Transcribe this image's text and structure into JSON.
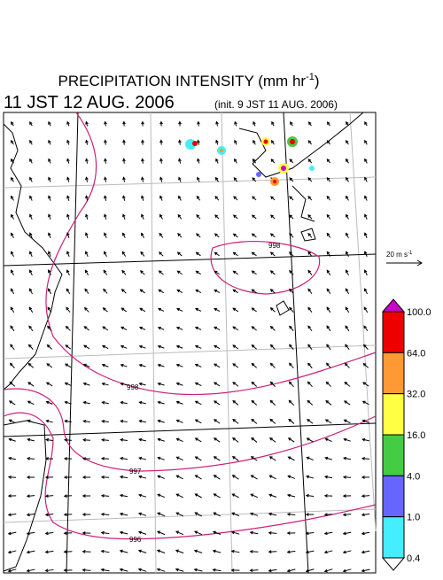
{
  "header": {
    "title": "PRECIPITATION INTENSITY (mm hr",
    "title_sup": "-1",
    "title_close": ")",
    "valid_time": "11 JST 12 AUG. 2006",
    "init_time": "(init. 9 JST 11 AUG. 2006)"
  },
  "vector_scale": {
    "label": "20 m s",
    "label_sup": "-1"
  },
  "isobar_labels": [
    "998",
    "998",
    "997",
    "996"
  ],
  "colorbar": {
    "labels": [
      "100.0",
      "64.0",
      "32.0",
      "16.0",
      "4.0",
      "1.0",
      "0.4"
    ],
    "colors": [
      "#cc00cc",
      "#ee0000",
      "#ff9933",
      "#ffff44",
      "#44cc44",
      "#6666ff",
      "#44eeff",
      "#ffffff"
    ]
  }
}
